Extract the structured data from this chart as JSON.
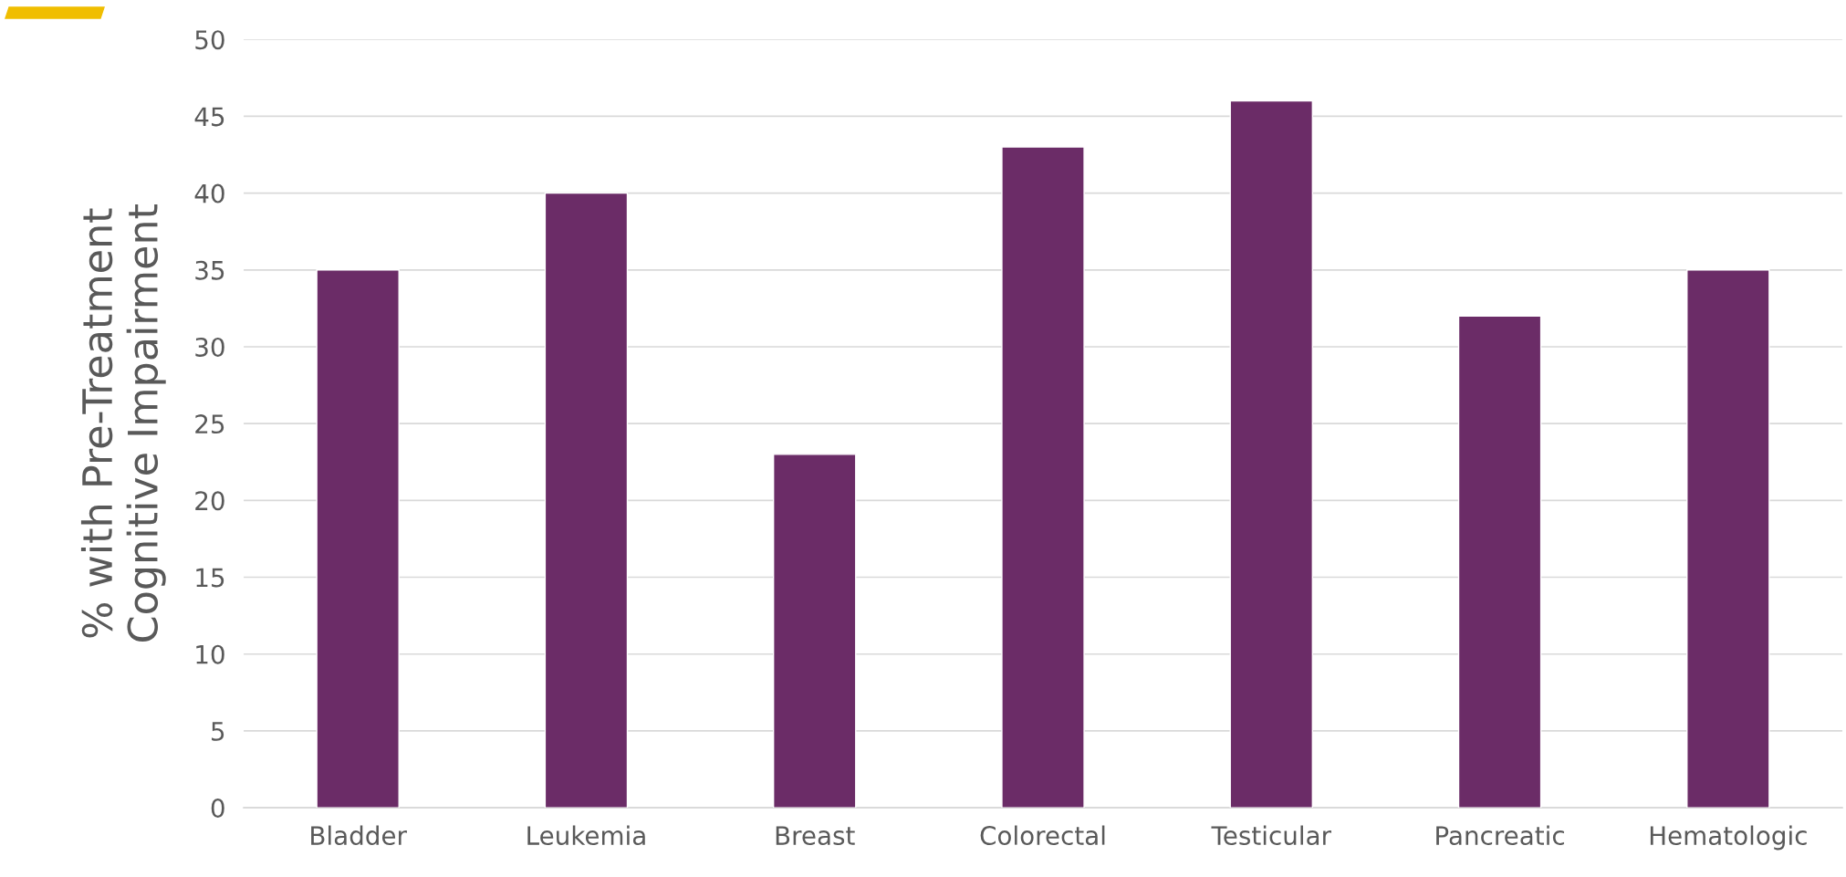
{
  "chart_data": {
    "type": "bar",
    "ylabel": "% with Pre-Treatment\nCognitive Impairment",
    "categories": [
      "Bladder",
      "Leukemia",
      "Breast",
      "Colorectal",
      "Testicular",
      "Pancreatic",
      "Hematologic"
    ],
    "values": [
      35,
      40,
      23,
      43,
      46,
      32,
      35
    ],
    "color": "#6b2c67",
    "ylim": [
      0,
      50
    ],
    "yticks": [
      0,
      5,
      10,
      15,
      20,
      25,
      30,
      35,
      40,
      45,
      50
    ],
    "grid": "y"
  }
}
